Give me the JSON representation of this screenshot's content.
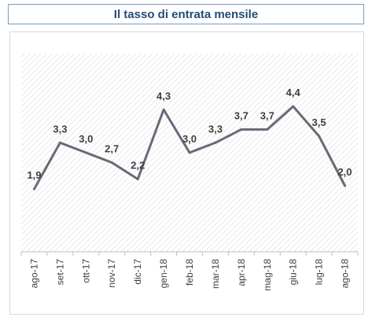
{
  "title": "Il tasso di entrata mensile",
  "chart_data": {
    "type": "line",
    "title": "Il tasso di entrata mensile",
    "categories": [
      "ago-17",
      "set-17",
      "ott-17",
      "nov-17",
      "dic-17",
      "gen-18",
      "feb-18",
      "mar-18",
      "apr-18",
      "mag-18",
      "giu-18",
      "lug-18",
      "ago-18"
    ],
    "series": [
      {
        "values": [
          1.9,
          3.3,
          3.0,
          2.7,
          2.2,
          4.3,
          3.0,
          3.3,
          3.7,
          3.7,
          4.4,
          3.5,
          2.0
        ]
      }
    ],
    "data_labels": [
      "1,9",
      "3,3",
      "3,0",
      "2,7",
      "2,2",
      "4,3",
      "3,0",
      "3,3",
      "3,7",
      "3,7",
      "4,4",
      "3,5",
      "2,0"
    ],
    "ylim": [
      0,
      6
    ],
    "grid": false,
    "legend": "none",
    "colors": {
      "line": "#6b6878",
      "title_text": "#1f4e79",
      "title_border": "#7a9cc0",
      "hatch": "#d4d4d4"
    }
  }
}
